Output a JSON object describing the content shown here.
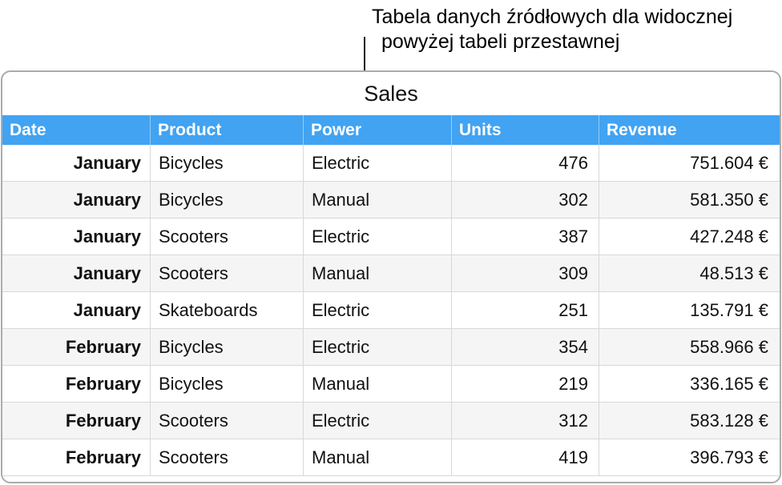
{
  "annotation": {
    "line1": "Tabela danych źródłowych dla widocznej",
    "line2": "powyżej tabeli przestawnej"
  },
  "table": {
    "title": "Sales",
    "columns": [
      "Date",
      "Product",
      "Power",
      "Units",
      "Revenue"
    ],
    "rows": [
      [
        "January",
        "Bicycles",
        "Electric",
        "476",
        "751.604 €"
      ],
      [
        "January",
        "Bicycles",
        "Manual",
        "302",
        "581.350 €"
      ],
      [
        "January",
        "Scooters",
        "Electric",
        "387",
        "427.248 €"
      ],
      [
        "January",
        "Scooters",
        "Manual",
        "309",
        "48.513 €"
      ],
      [
        "January",
        "Skateboards",
        "Electric",
        "251",
        "135.791 €"
      ],
      [
        "February",
        "Bicycles",
        "Electric",
        "354",
        "558.966 €"
      ],
      [
        "February",
        "Bicycles",
        "Manual",
        "219",
        "336.165 €"
      ],
      [
        "February",
        "Scooters",
        "Electric",
        "312",
        "583.128 €"
      ],
      [
        "February",
        "Scooters",
        "Manual",
        "419",
        "396.793 €"
      ]
    ],
    "colors": {
      "header_bg": "#41a3f2",
      "header_text": "#ffffff",
      "stripe_bg": "#f5f5f6",
      "cell_border": "#d8d8d8",
      "widget_border": "#ababab"
    }
  }
}
